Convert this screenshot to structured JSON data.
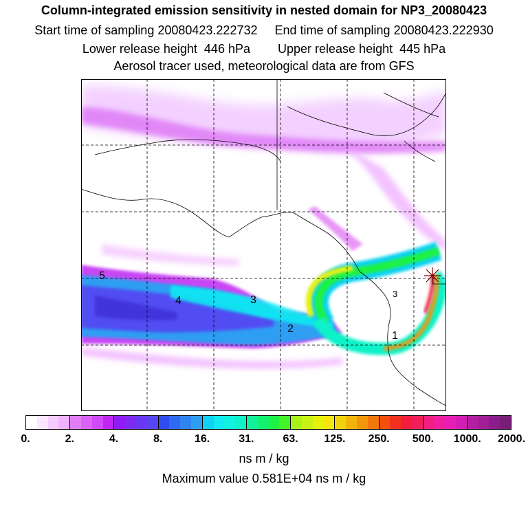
{
  "header": {
    "title": "Column-integrated emission sensitivity in nested domain for NP3_20080423",
    "line1": "Start time of sampling 20080423.222732     End time of sampling 20080423.222930",
    "line2": "Lower release height  446 hPa        Upper release height  445 hPa",
    "line3": "Aerosol tracer used, meteorological data are from GFS"
  },
  "map": {
    "release_labels": [
      "1",
      "2",
      "3",
      "4",
      "5"
    ],
    "release_markers": [
      "star-icon"
    ]
  },
  "colorbar": {
    "tick_labels": [
      "0.",
      "2.",
      "4.",
      "8.",
      "16.",
      "31.",
      "63.",
      "125.",
      "250.",
      "500.",
      "1000.",
      "2000."
    ],
    "segments": [
      [
        "#ffffff",
        "#fbe6ff",
        "#f6ccff",
        "#f0b3ff"
      ],
      [
        "#e27df5",
        "#da63f5",
        "#d04af5",
        "#c026f2"
      ],
      [
        "#8f1cf2",
        "#7f2af2",
        "#6a38f2",
        "#5545f2"
      ],
      [
        "#2f4df2",
        "#2f6af2",
        "#2f84f2",
        "#2f9ef2"
      ],
      [
        "#11d2f2",
        "#11eaf2",
        "#11f2e0",
        "#11f2c8"
      ],
      [
        "#11f29c",
        "#11f270",
        "#1ef244",
        "#44f22a"
      ],
      [
        "#a8f21c",
        "#c8f214",
        "#e6f20c",
        "#f2e60c"
      ],
      [
        "#f2d20c",
        "#f2b40c",
        "#f2960c",
        "#f2780c"
      ],
      [
        "#f2500c",
        "#f2301e",
        "#f21e3c",
        "#f21e5a"
      ],
      [
        "#f21e82",
        "#f21ea0",
        "#e61eb4",
        "#d21eb4"
      ],
      [
        "#b41ea0",
        "#a01e96",
        "#8c1e8c",
        "#781e78"
      ]
    ],
    "unit_label": "ns m / kg"
  },
  "footer": {
    "max_value": "Maximum value  0.581E+04 ns m / kg"
  }
}
